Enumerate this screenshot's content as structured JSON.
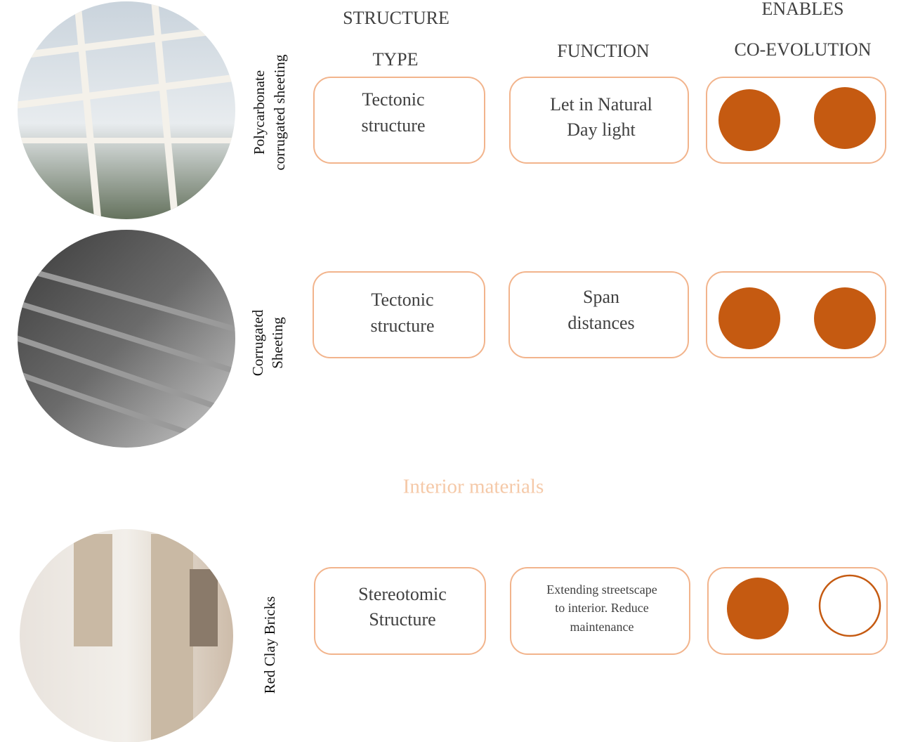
{
  "headers": {
    "type": [
      "STRUCTURE",
      "TYPE"
    ],
    "function": "FUNCTION",
    "co_evolution": [
      "ENABLES",
      "CO-EVOLUTION"
    ]
  },
  "section": "Interior materials",
  "rows": [
    {
      "material": [
        "Polycarbonate",
        "corrugated sheeting"
      ],
      "type": [
        "Tectonic",
        "structure"
      ],
      "function": [
        "Let in Natural",
        "Day light"
      ]
    },
    {
      "material": [
        "Corrugated",
        "Sheeting"
      ],
      "type": [
        "Tectonic",
        "structure"
      ],
      "function": [
        "Span",
        "distances"
      ]
    },
    {
      "material": [
        "Red Clay Bricks"
      ],
      "type": [
        "Stereotomic",
        "Structure"
      ],
      "function": [
        "Extending streetscape",
        "to interior. Reduce",
        "maintenance"
      ]
    }
  ]
}
